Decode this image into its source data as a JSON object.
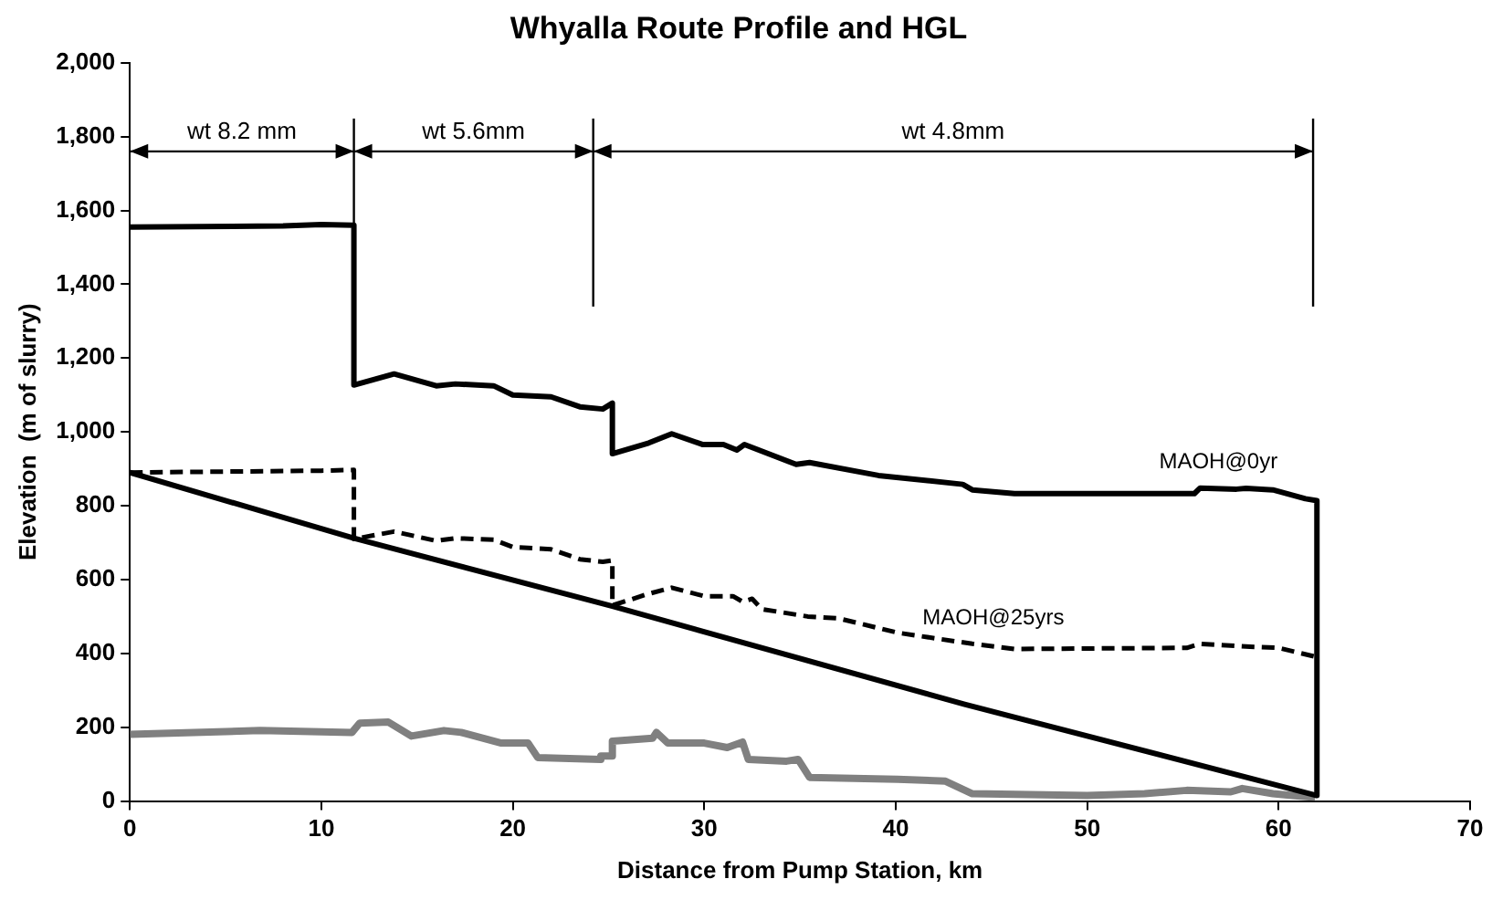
{
  "chart_data": {
    "type": "line",
    "title": "Whyalla Route Profile and HGL",
    "xlabel": "Distance from Pump Station, km",
    "ylabel": "Elevation  (m of slurry)",
    "xlim": [
      0,
      70
    ],
    "xticks": [
      0,
      10,
      20,
      30,
      40,
      50,
      60,
      70
    ],
    "ylim": [
      0,
      2000
    ],
    "yticks": [
      {
        "value": 0,
        "label": "0"
      },
      {
        "value": 200,
        "label": "200"
      },
      {
        "value": 400,
        "label": "400"
      },
      {
        "value": 600,
        "label": "600"
      },
      {
        "value": 800,
        "label": "800"
      },
      {
        "value": 1000,
        "label": "1,000"
      },
      {
        "value": 1200,
        "label": "1,200"
      },
      {
        "value": 1400,
        "label": "1,400"
      },
      {
        "value": 1600,
        "label": "1,600"
      },
      {
        "value": 1800,
        "label": "1,800"
      },
      {
        "value": 2000,
        "label": "2,000"
      }
    ],
    "grid": false,
    "legend": false,
    "marker": "none",
    "series": [
      {
        "name": "MAOH@0yr",
        "color": "#000000",
        "line_style": "solid",
        "x": [
          0,
          8,
          10,
          11.7,
          11.7,
          13.8,
          16,
          17,
          19,
          20,
          22,
          23.5,
          24.7,
          25.2,
          25.2,
          27.1,
          28.3,
          29.9,
          31,
          31.7,
          32.1,
          34.8,
          35.5,
          39.1,
          43.5,
          44,
          46.2,
          55.6,
          55.9,
          57.8,
          58.3,
          59.7,
          61.4,
          62,
          62
        ],
        "values": [
          1555,
          1558,
          1562,
          1560,
          1127,
          1157,
          1125,
          1130,
          1125,
          1100,
          1095,
          1068,
          1062,
          1078,
          941,
          970,
          995,
          966,
          966,
          951,
          966,
          912,
          917,
          882,
          858,
          843,
          833,
          833,
          848,
          845,
          847,
          843,
          819,
          814,
          15
        ]
      },
      {
        "name": "MAOH@25yrs",
        "color": "#000000",
        "line_style": "dashed",
        "x": [
          0,
          10,
          11.7,
          11.7,
          13.8,
          16,
          17,
          19,
          20,
          22,
          23.5,
          24.7,
          25.2,
          25.2,
          27,
          28.3,
          30,
          31.5,
          32,
          32.5,
          33,
          35.4,
          37,
          40.1,
          44,
          46.2,
          55.2,
          55.9,
          58.5,
          60,
          62
        ],
        "values": [
          890,
          895,
          897,
          710,
          730,
          705,
          712,
          708,
          688,
          682,
          655,
          648,
          652,
          530,
          560,
          578,
          555,
          555,
          540,
          548,
          520,
          500,
          495,
          456,
          426,
          412,
          415,
          426,
          418,
          415,
          390
        ]
      },
      {
        "color": "#000000",
        "line_style": "solid",
        "x": [
          0,
          11.7,
          25.2,
          43.6,
          62
        ],
        "values": [
          890,
          712,
          528,
          262,
          15
        ]
      },
      {
        "color": "#808080",
        "line_style": "solid",
        "x": [
          0,
          6.8,
          11.6,
          12,
          13.5,
          14.7,
          16.4,
          17.3,
          19.4,
          20.8,
          21.3,
          24.6,
          24.6,
          25.2,
          25.2,
          27.3,
          27.5,
          28.1,
          30,
          31.2,
          32,
          32.3,
          34.3,
          34.9,
          35.5,
          40.1,
          42.6,
          44,
          50,
          53,
          55.2,
          57.5,
          58.1,
          59.7,
          60.7,
          61.9
        ],
        "values": [
          181,
          191,
          186,
          211,
          214,
          176,
          191,
          186,
          157,
          157,
          118,
          113,
          122,
          122,
          162,
          170,
          186,
          157,
          157,
          145,
          160,
          113,
          108,
          113,
          64,
          59,
          54,
          20,
          15,
          20,
          29,
          25,
          34,
          20,
          15,
          10
        ]
      }
    ],
    "ref_lines": [
      {
        "axis": "x",
        "value": 11.7,
        "color": "#000000"
      },
      {
        "axis": "x",
        "value": 24.2,
        "color": "#000000"
      },
      {
        "axis": "x",
        "value": 61.8,
        "color": "#000000"
      }
    ],
    "annotations": [
      "wt 8.2 mm",
      "wt 5.6mm",
      "wt 4.8mm"
    ]
  }
}
